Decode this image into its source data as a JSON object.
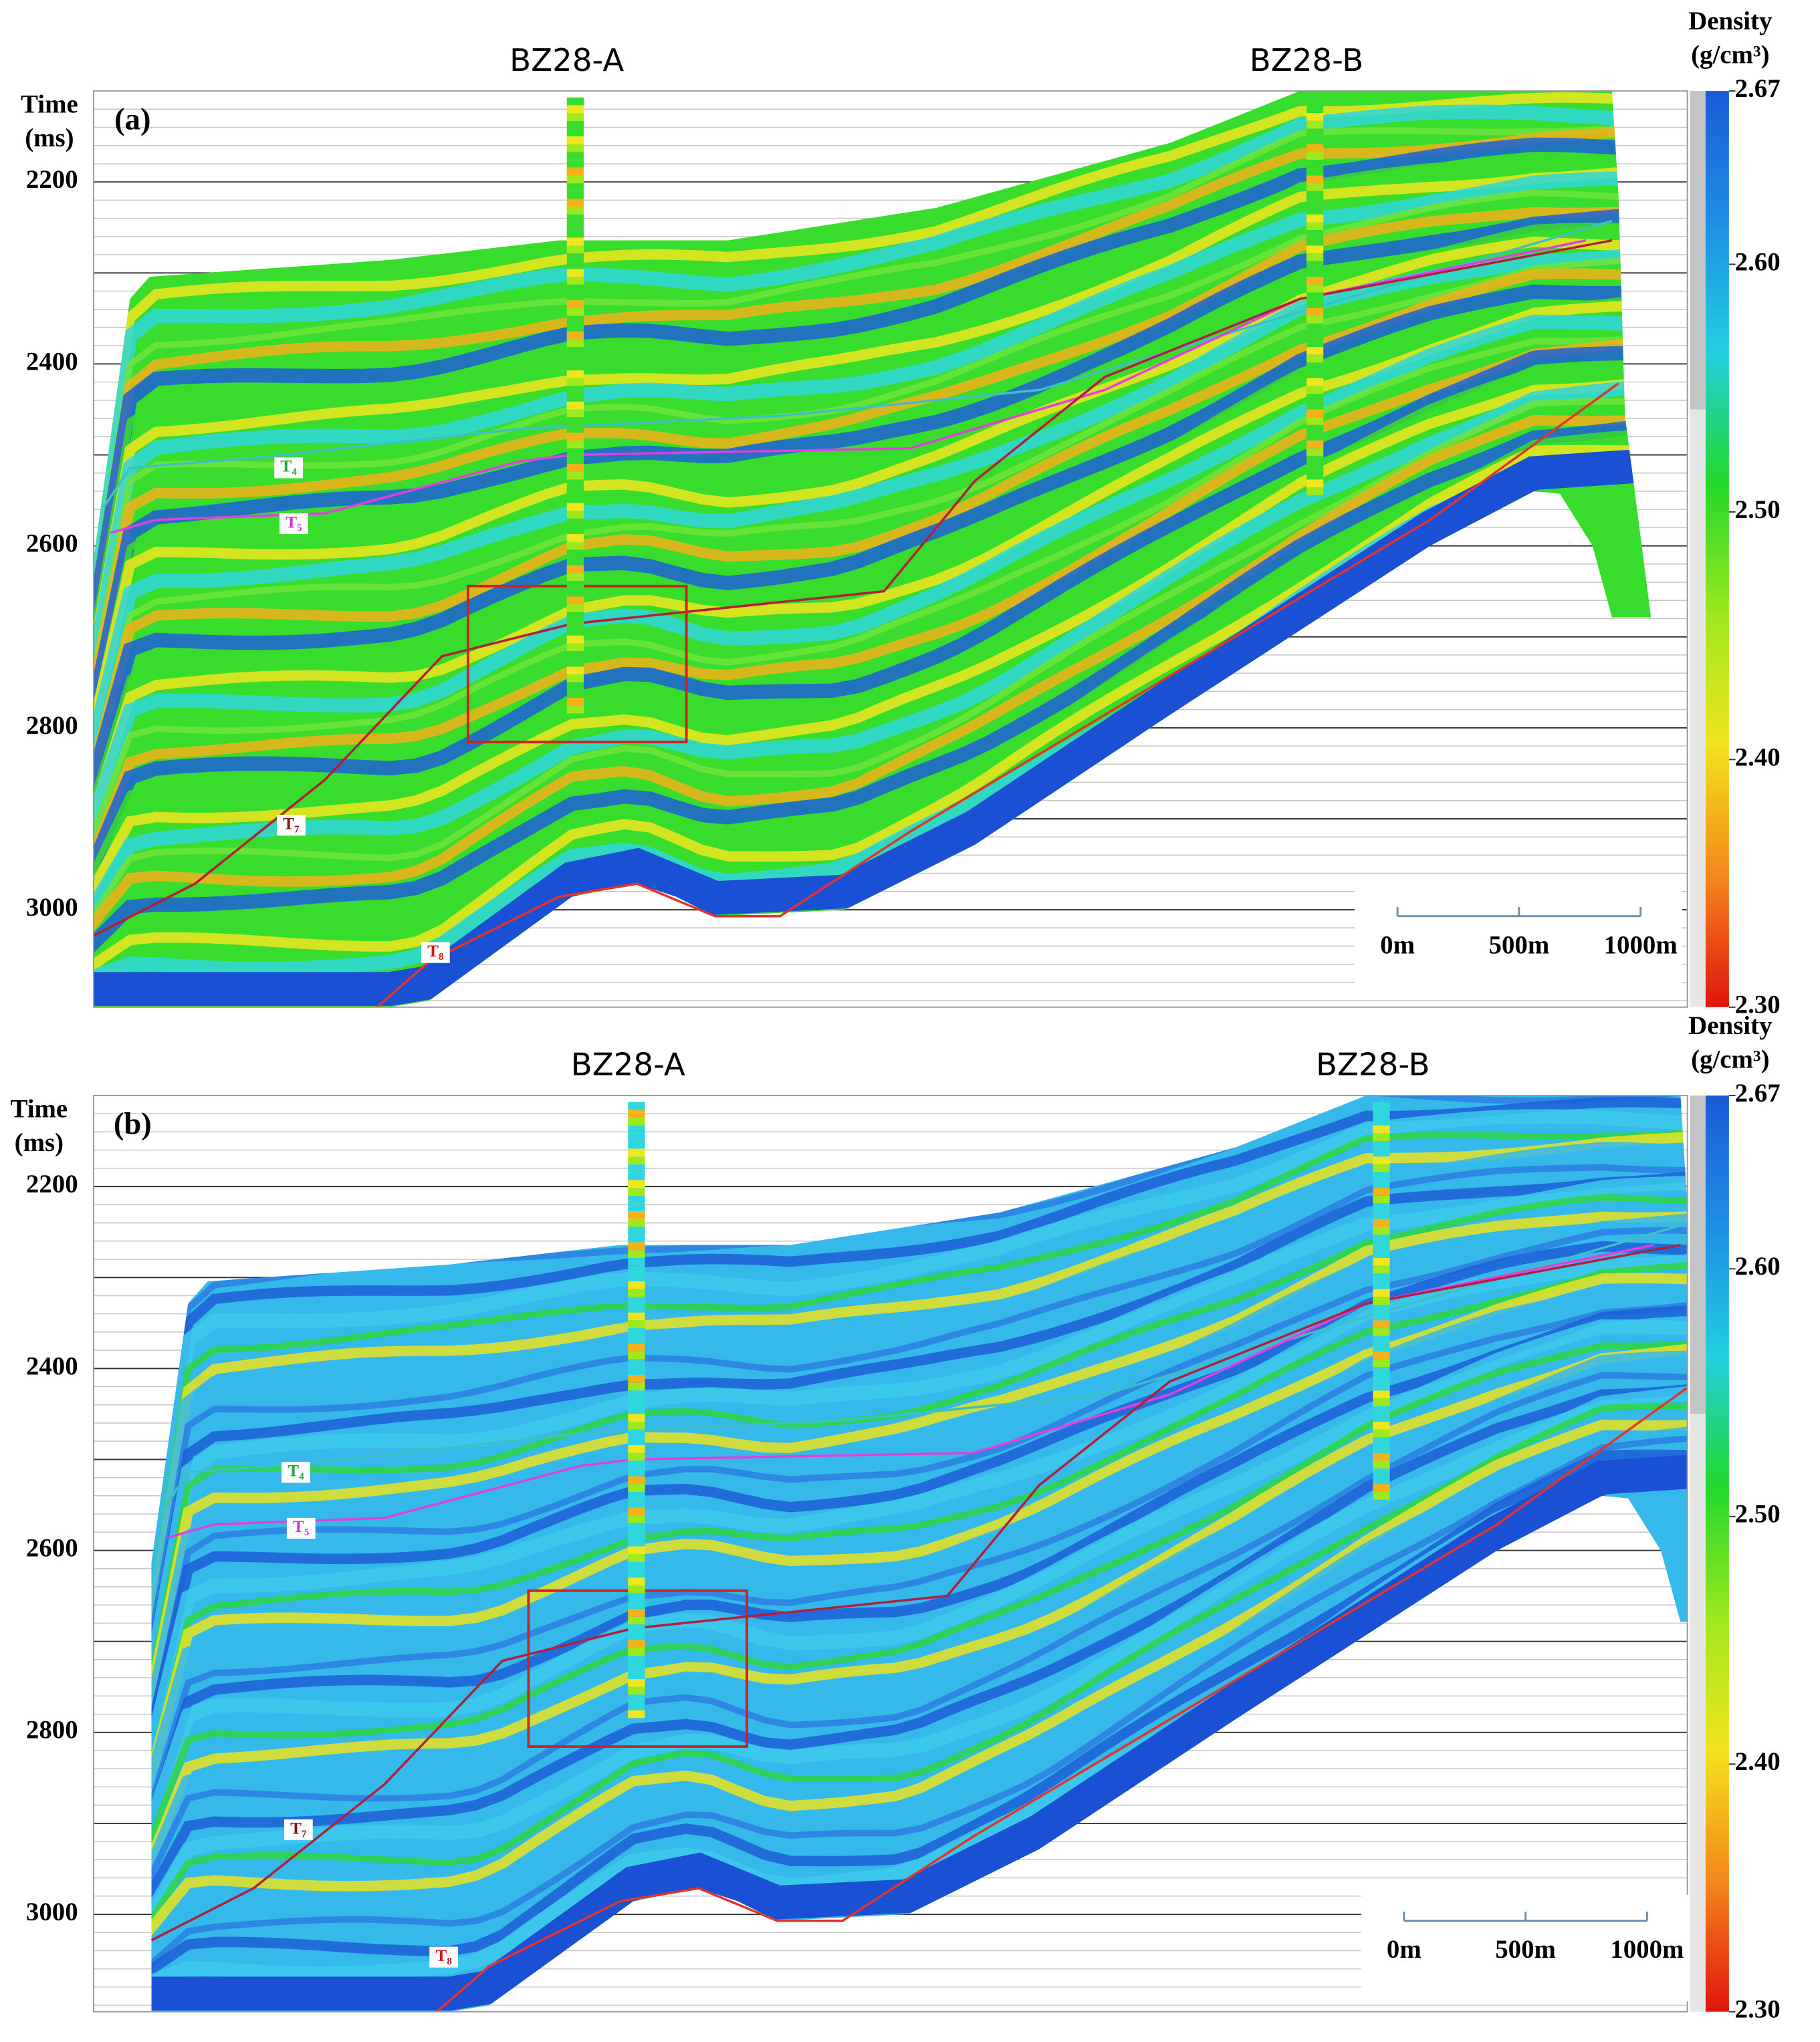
{
  "chart_data": [
    {
      "type": "heatmap",
      "panel_label": "(a)",
      "ylabel": "Time",
      "yunit": "(ms)",
      "ylim": [
        2100,
        3107
      ],
      "yticks": [
        2200,
        2400,
        2600,
        2800,
        3000
      ],
      "ygrid": [
        2300,
        2500,
        2700,
        2900
      ],
      "wells": [
        "BZ28-A",
        "BZ28-B"
      ],
      "horizons": [
        "T₄",
        "T₅",
        "T₇",
        "T₈"
      ],
      "scale_bar": [
        "0m",
        "500m",
        "1000m"
      ],
      "colorbar": {
        "title": "Density",
        "unit": "(g/cm³)",
        "lim": [
          2.3,
          2.67
        ],
        "ticks": [
          2.67,
          {
            "value": 2.6,
            "label": "2.60"
          },
          {
            "value": 2.5,
            "label": "2.50"
          },
          {
            "value": 2.4,
            "label": "2.40"
          },
          {
            "value": 2.3,
            "label": "2.30"
          }
        ],
        "colors": [
          "#e0140f",
          "#f5871a",
          "#f2e21c",
          "#9ee81e",
          "#22d82a",
          "#22cfe0",
          "#1d8fe6",
          "#1a5bd6"
        ]
      },
      "palette": [
        "#38dc2c",
        "#eee61e",
        "#2fd6dc",
        "#6fe43a",
        "#f3b21a",
        "#1e60d8"
      ]
    },
    {
      "type": "heatmap",
      "panel_label": "(b)",
      "ylabel": "Time",
      "yunit": "(ms)",
      "ylim": [
        2100,
        3107
      ],
      "yticks": [
        2200,
        2400,
        2600,
        2800,
        3000
      ],
      "ygrid": [
        2300,
        2500,
        2700,
        2900
      ],
      "wells": [
        "BZ28-A",
        "BZ28-B"
      ],
      "horizons": [
        "T₄",
        "T₅",
        "T₇",
        "T₈"
      ],
      "scale_bar": [
        "0m",
        "500m",
        "1000m"
      ],
      "colorbar": {
        "title": "Density",
        "unit": "(g/cm³)",
        "lim": [
          2.3,
          2.67
        ],
        "ticks": [
          2.67,
          {
            "value": 2.6,
            "label": "2.60"
          },
          {
            "value": 2.5,
            "label": "2.50"
          },
          {
            "value": 2.4,
            "label": "2.40"
          },
          {
            "value": 2.3,
            "label": "2.30"
          }
        ],
        "colors": [
          "#e0140f",
          "#f5871a",
          "#f2e21c",
          "#9ee81e",
          "#22d82a",
          "#22cfe0",
          "#1d8fe6",
          "#1a5bd6"
        ]
      },
      "palette": [
        "#35b9ea",
        "#2a7fe0",
        "#1c5ed8",
        "#3cc8ec",
        "#2ed640",
        "#e9e21e"
      ]
    }
  ]
}
